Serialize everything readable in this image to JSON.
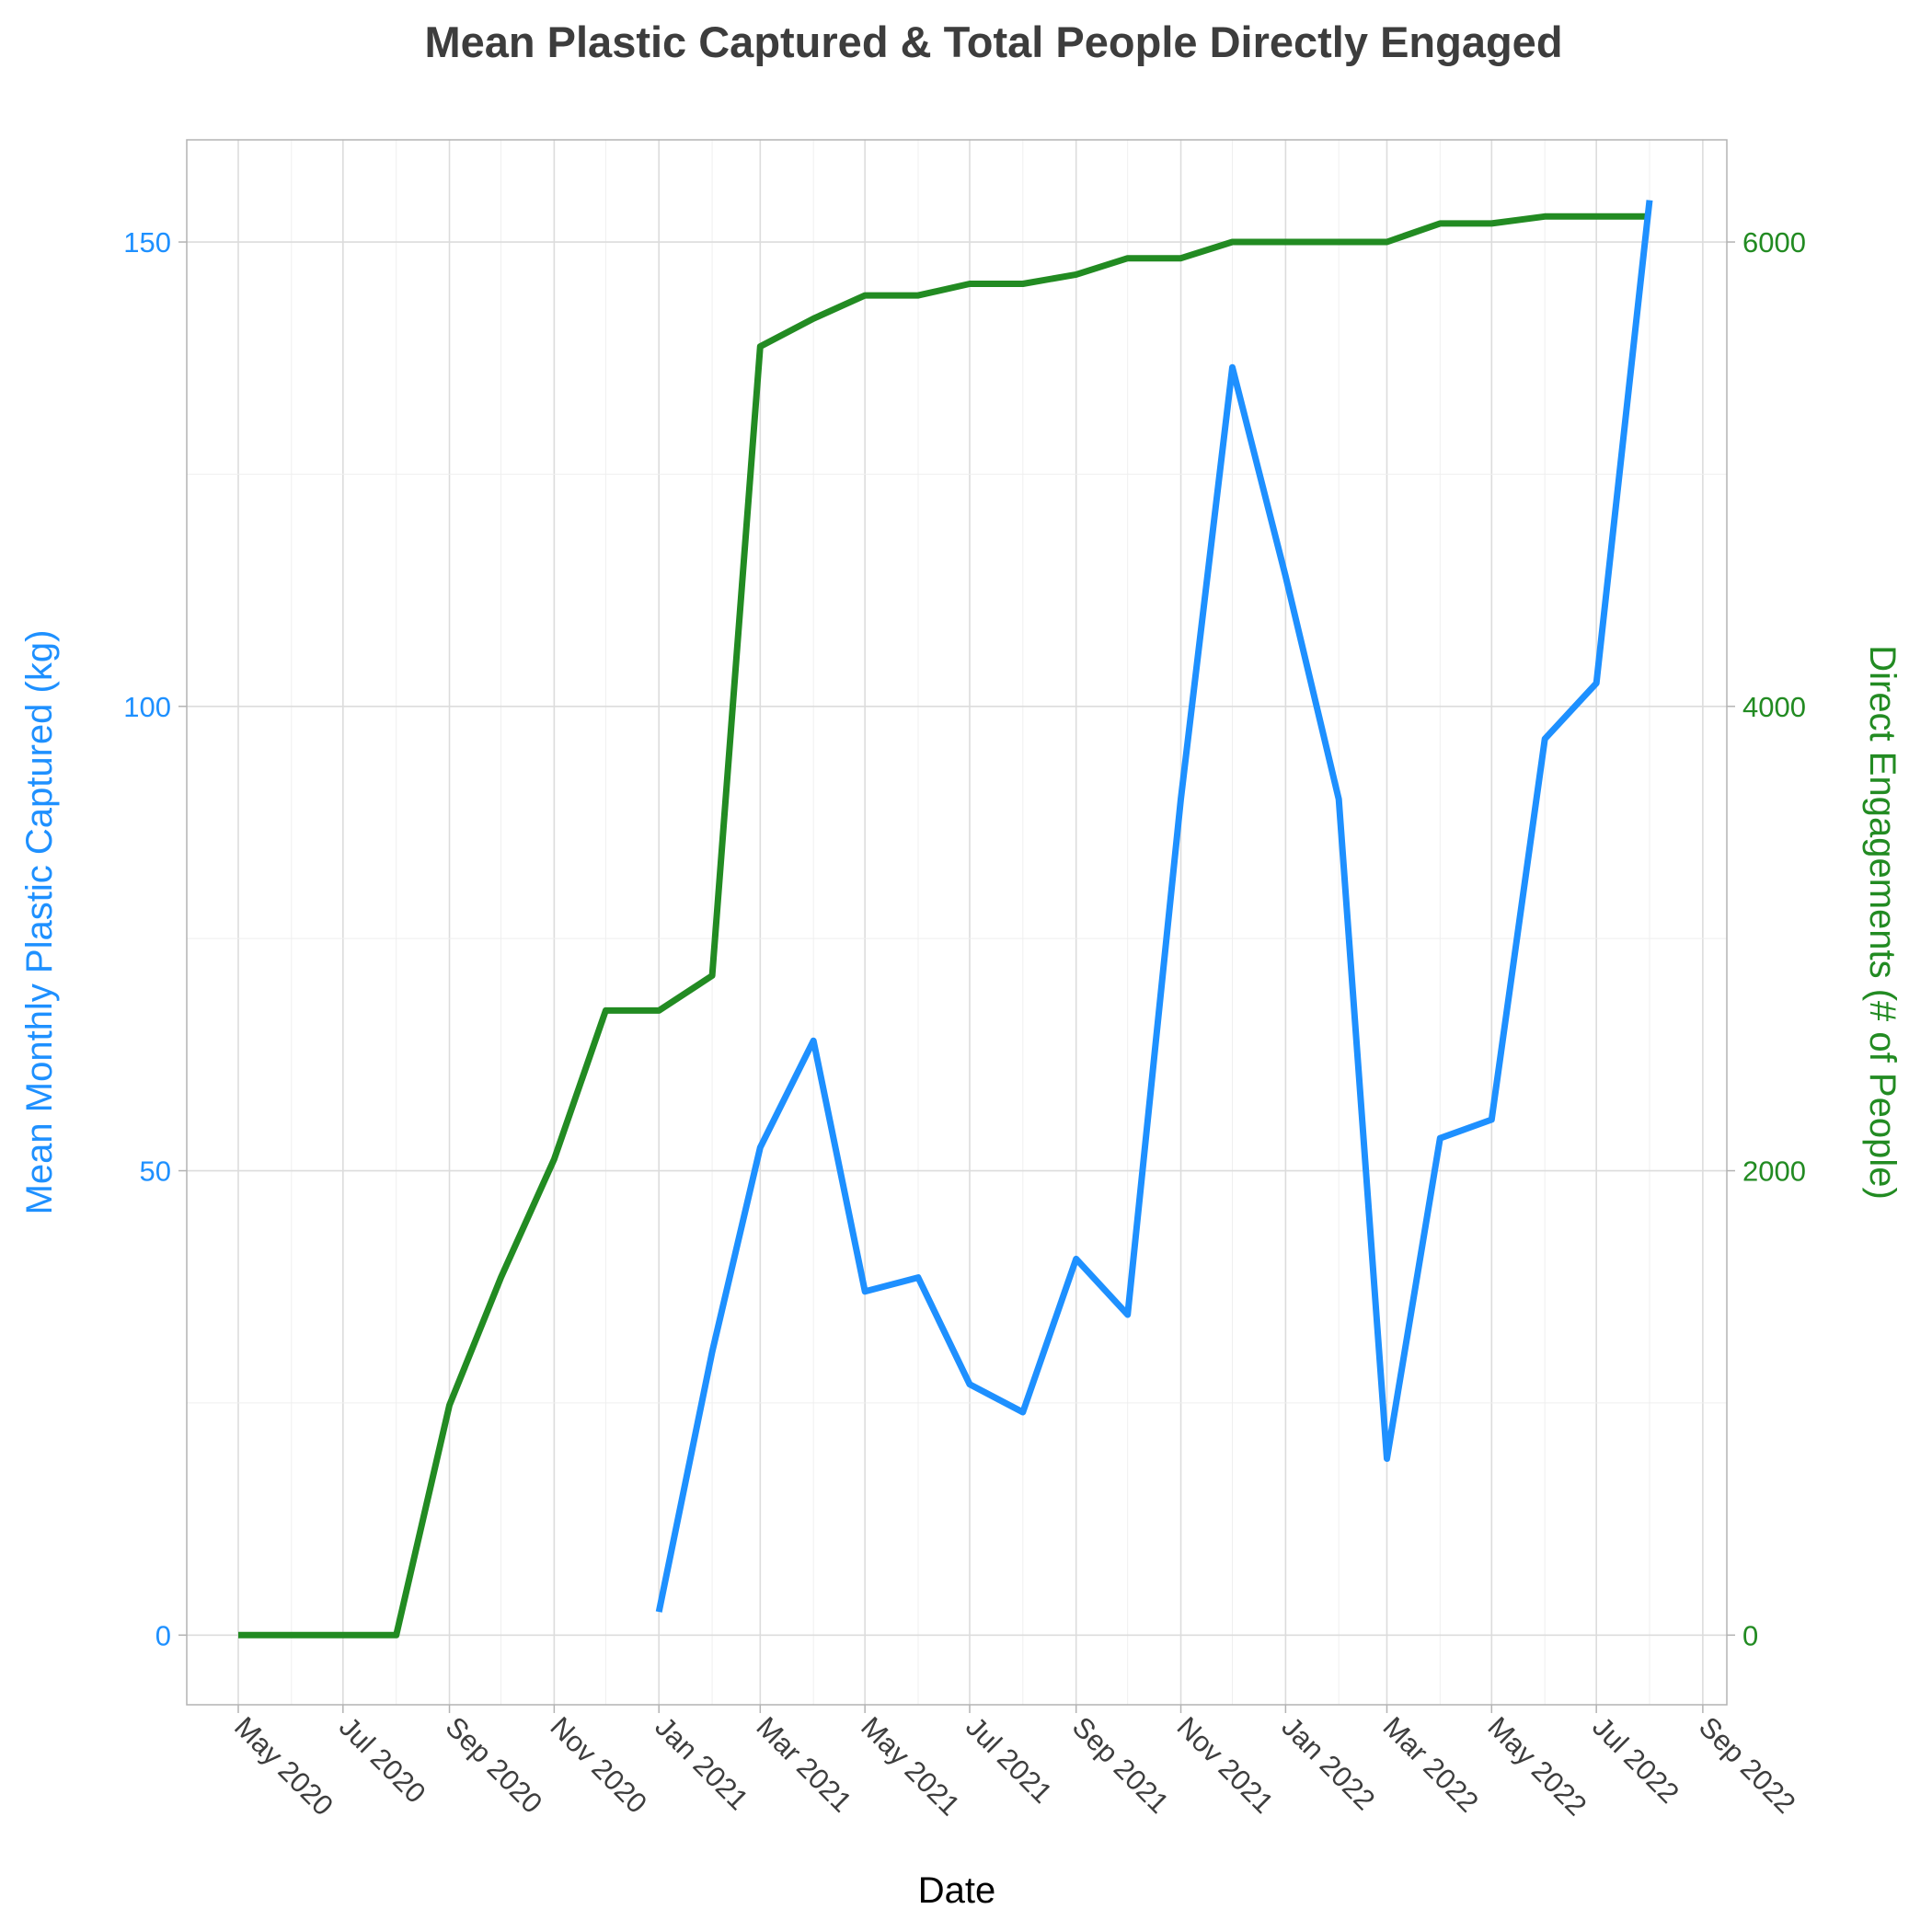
{
  "chart_data": {
    "type": "line",
    "title": "Mean Plastic Captured & Total People Directly Engaged",
    "xlabel": "Date",
    "ylabel_left": "Mean Monthly Plastic Captured (kg)",
    "ylabel_right": "Direct Engagements (# of People)",
    "x_ticks": [
      "2020-05-01",
      "2020-07-01",
      "2020-09-01",
      "2020-11-01",
      "2021-01-01",
      "2021-03-01",
      "2021-05-01",
      "2021-07-01",
      "2021-09-01",
      "2021-11-01",
      "2022-01-01",
      "2022-03-01",
      "2022-05-01",
      "2022-07-01",
      "2022-09-01"
    ],
    "x_tick_labels": [
      "May 2020",
      "Jul 2020",
      "Sep 2020",
      "Nov 2020",
      "Jan 2021",
      "Mar 2021",
      "May 2021",
      "Jul 2021",
      "Sep 2021",
      "Nov 2021",
      "Jan 2022",
      "Mar 2022",
      "May 2022",
      "Jul 2022",
      "Sep 2022"
    ],
    "xlim": [
      "2020-04-01",
      "2022-09-15"
    ],
    "ylim_left": [
      -7.5,
      161
    ],
    "ylim_right": [
      -300,
      6440
    ],
    "y_ticks_left": [
      0,
      50,
      100,
      150
    ],
    "y_ticks_right": [
      0,
      2000,
      4000,
      6000
    ],
    "grid": true,
    "colors": {
      "plastic": "#1e90ff",
      "engagements": "#228b22",
      "title": "#3d3d3d"
    },
    "series": [
      {
        "axis": "left",
        "x": [
          "2021-01-01",
          "2021-02-01",
          "2021-03-01",
          "2021-04-01",
          "2021-05-01",
          "2021-06-01",
          "2021-07-01",
          "2021-08-01",
          "2021-09-01",
          "2021-10-01",
          "2021-11-01",
          "2021-12-01",
          "2022-01-01",
          "2022-02-01",
          "2022-03-01",
          "2022-04-01",
          "2022-05-01",
          "2022-06-01",
          "2022-07-01",
          "2022-08-01"
        ],
        "values": [
          2.5,
          30.5,
          52.5,
          64.0,
          37.0,
          38.5,
          27.0,
          24.0,
          40.5,
          34.5,
          90.0,
          136.5,
          114.0,
          90.0,
          19.0,
          53.5,
          55.5,
          96.5,
          102.5,
          154.5
        ]
      },
      {
        "axis": "right",
        "x": [
          "2020-05-01",
          "2020-06-01",
          "2020-07-01",
          "2020-08-01",
          "2020-09-01",
          "2020-10-01",
          "2020-11-01",
          "2020-12-01",
          "2021-01-01",
          "2021-02-01",
          "2021-03-01",
          "2021-04-01",
          "2021-05-01",
          "2021-06-01",
          "2021-07-01",
          "2021-08-01",
          "2021-09-01",
          "2021-10-01",
          "2021-11-01",
          "2021-12-01",
          "2022-01-01",
          "2022-02-01",
          "2022-03-01",
          "2022-04-01",
          "2022-05-01",
          "2022-06-01",
          "2022-07-01",
          "2022-08-01"
        ],
        "values": [
          0,
          0,
          0,
          0,
          990,
          1540,
          2050,
          2690,
          2690,
          2840,
          5550,
          5670,
          5770,
          5770,
          5820,
          5820,
          5860,
          5930,
          5930,
          6000,
          6000,
          6000,
          6000,
          6080,
          6080,
          6110,
          6110,
          6110
        ]
      }
    ]
  }
}
